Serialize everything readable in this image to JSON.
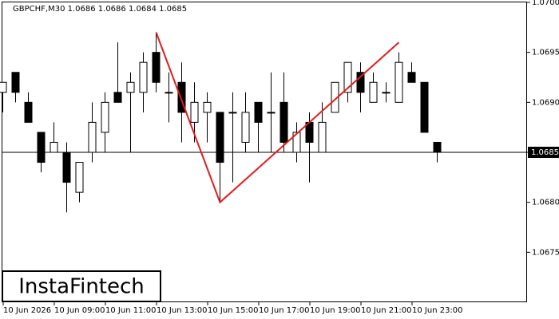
{
  "chart_data": {
    "type": "candlestick",
    "title": "GBPCHF,M30  1.0686 1.0686 1.0684 1.0685",
    "logo": "InstaFintech",
    "categories": [
      "10 Jun 2026",
      null,
      null,
      null,
      "10 Jun 09:00",
      null,
      null,
      null,
      "10 Jun 11:00",
      null,
      null,
      null,
      "10 Jun 13:00",
      null,
      null,
      null,
      "10 Jun 15:00",
      null,
      null,
      null,
      "10 Jun 17:00",
      null,
      null,
      null,
      "10 Jun 19:00",
      null,
      null,
      null,
      "10 Jun 21:00",
      null,
      null,
      null,
      "10 Jun 23:00",
      null,
      null
    ],
    "open": [
      1.0691,
      1.0693,
      1.069,
      1.0687,
      1.0685,
      1.0685,
      1.0681,
      1.0685,
      1.0687,
      1.0691,
      1.0691,
      1.0691,
      1.0695,
      1.0691,
      1.0692,
      1.0688,
      1.0689,
      1.0689,
      1.0689,
      1.0686,
      1.069,
      1.0689,
      1.069,
      1.0685,
      1.0688,
      1.0685,
      1.0689,
      1.0691,
      1.0693,
      1.069,
      1.0691,
      1.069,
      1.0693,
      1.0692,
      1.0686
    ],
    "high": [
      1.0692,
      1.0693,
      1.0691,
      1.0687,
      1.0688,
      1.0686,
      1.0684,
      1.069,
      1.0691,
      1.0696,
      1.0693,
      1.0695,
      1.0697,
      1.0693,
      1.0694,
      1.0692,
      1.0691,
      1.0689,
      1.0691,
      1.0691,
      1.069,
      1.0693,
      1.0693,
      1.0688,
      1.0689,
      1.069,
      1.0692,
      1.0694,
      1.0694,
      1.0693,
      1.0692,
      1.0695,
      1.0694,
      1.0692,
      1.0686
    ],
    "low": [
      1.0689,
      1.069,
      1.0688,
      1.0683,
      1.0685,
      1.0679,
      1.068,
      1.0684,
      1.0685,
      1.069,
      1.0685,
      1.0689,
      1.0691,
      1.0688,
      1.0686,
      1.0686,
      1.0686,
      1.068,
      1.0682,
      1.0685,
      1.0685,
      1.0685,
      1.0685,
      1.0684,
      1.0682,
      1.0685,
      1.0689,
      1.069,
      1.0689,
      1.069,
      1.069,
      1.069,
      1.0692,
      1.0687,
      1.0684
    ],
    "close": [
      1.0692,
      1.0691,
      1.0688,
      1.0684,
      1.0686,
      1.0682,
      1.0684,
      1.0688,
      1.069,
      1.069,
      1.0692,
      1.0694,
      1.0692,
      1.0691,
      1.0689,
      1.069,
      1.069,
      1.0684,
      1.0689,
      1.0689,
      1.0688,
      1.0689,
      1.0686,
      1.0687,
      1.0686,
      1.0688,
      1.0692,
      1.0694,
      1.0691,
      1.0692,
      1.0691,
      1.0694,
      1.0692,
      1.0687,
      1.0685
    ],
    "pattern": {
      "color": "#e31b1b",
      "x": [
        12,
        17,
        31
      ],
      "values": [
        1.0697,
        1.068,
        1.0696
      ]
    },
    "current_price": {
      "value": 1.0685,
      "label": "1.0685"
    },
    "ylim": [
      1.067,
      1.07
    ],
    "yticks": [
      {
        "value": 1.07,
        "label": "1.0700"
      },
      1.0695,
      {
        "value": 1.069,
        "label": "1.0690"
      },
      1.0685,
      {
        "value": 1.068,
        "label": "1.0680"
      },
      1.0675
    ]
  }
}
